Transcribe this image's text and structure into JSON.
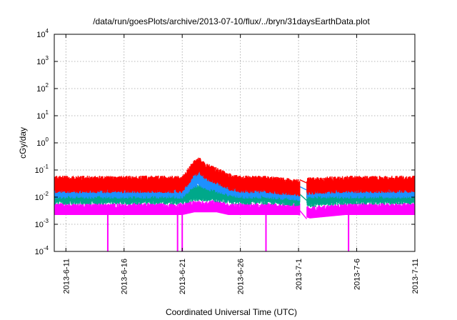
{
  "chart_data": {
    "type": "line",
    "title": "/data/run/goesPlots/archive/2013-07-10/flux/../bryn/31daysEarthData.plot",
    "xlabel": "Coordinated Universal Time (UTC)",
    "ylabel": "cGy/day",
    "yscale": "log",
    "ylim_exponents": [
      -4,
      4
    ],
    "y_ticks": [
      {
        "base": "10",
        "exp": "-4"
      },
      {
        "base": "10",
        "exp": "-3"
      },
      {
        "base": "10",
        "exp": "-2"
      },
      {
        "base": "10",
        "exp": "-1"
      },
      {
        "base": "10",
        "exp": "0"
      },
      {
        "base": "10",
        "exp": "1"
      },
      {
        "base": "10",
        "exp": "2"
      },
      {
        "base": "10",
        "exp": "3"
      },
      {
        "base": "10",
        "exp": "4"
      }
    ],
    "x_range": [
      "2013-06-10",
      "2013-07-11"
    ],
    "x_ticks": [
      "2013-6-11",
      "2013-6-16",
      "2013-6-21",
      "2013-6-26",
      "2013-7-1",
      "2013-7-6",
      "2013-7-11"
    ],
    "grid": true,
    "data_gap": [
      "2013-07-01",
      "2013-07-02"
    ],
    "series": [
      {
        "color": "#ff0000",
        "x": [
          "2013-06-10",
          "2013-06-14",
          "2013-06-18",
          "2013-06-21",
          "2013-06-22",
          "2013-06-22.5",
          "2013-06-23",
          "2013-06-24",
          "2013-06-25",
          "2013-06-26",
          "2013-06-28",
          "2013-07-01",
          "2013-07-02",
          "2013-07-05",
          "2013-07-08",
          "2013-07-11"
        ],
        "y": [
          0.04,
          0.04,
          0.04,
          0.04,
          0.15,
          0.2,
          0.12,
          0.08,
          0.05,
          0.04,
          0.04,
          0.03,
          0.035,
          0.04,
          0.04,
          0.04
        ]
      },
      {
        "color": "#1e90ff",
        "x": [
          "2013-06-10",
          "2013-06-14",
          "2013-06-18",
          "2013-06-21",
          "2013-06-22",
          "2013-06-22.5",
          "2013-06-23",
          "2013-06-24",
          "2013-06-25",
          "2013-06-26",
          "2013-06-28",
          "2013-07-01",
          "2013-07-02",
          "2013-07-05",
          "2013-07-08",
          "2013-07-11"
        ],
        "y": [
          0.025,
          0.025,
          0.025,
          0.025,
          0.06,
          0.07,
          0.05,
          0.04,
          0.03,
          0.025,
          0.025,
          0.02,
          0.025,
          0.025,
          0.025,
          0.025
        ]
      },
      {
        "color": "#00a88a",
        "x": [
          "2013-06-10",
          "2013-06-14",
          "2013-06-18",
          "2013-06-21",
          "2013-06-22",
          "2013-06-23",
          "2013-06-24",
          "2013-06-25",
          "2013-06-26",
          "2013-06-28",
          "2013-07-01",
          "2013-07-02",
          "2013-07-05",
          "2013-07-08",
          "2013-07-11"
        ],
        "y": [
          0.015,
          0.015,
          0.015,
          0.015,
          0.02,
          0.02,
          0.018,
          0.016,
          0.015,
          0.015,
          0.013,
          0.012,
          0.015,
          0.015,
          0.015
        ]
      },
      {
        "color": "#ff00ff",
        "x": [
          "2013-06-10",
          "2013-06-14",
          "2013-06-18",
          "2013-06-21",
          "2013-06-22",
          "2013-06-23",
          "2013-06-24",
          "2013-06-25",
          "2013-06-26",
          "2013-06-28",
          "2013-07-01",
          "2013-07-02",
          "2013-07-05",
          "2013-07-08",
          "2013-07-11"
        ],
        "y": [
          0.004,
          0.004,
          0.004,
          0.004,
          0.005,
          0.005,
          0.005,
          0.004,
          0.004,
          0.004,
          0.004,
          0.003,
          0.004,
          0.004,
          0.004
        ]
      }
    ],
    "dropouts": [
      "2013-06-14.6",
      "2013-06-20.6",
      "2013-06-21.0",
      "2013-06-28.2",
      "2013-07-05.3"
    ]
  }
}
